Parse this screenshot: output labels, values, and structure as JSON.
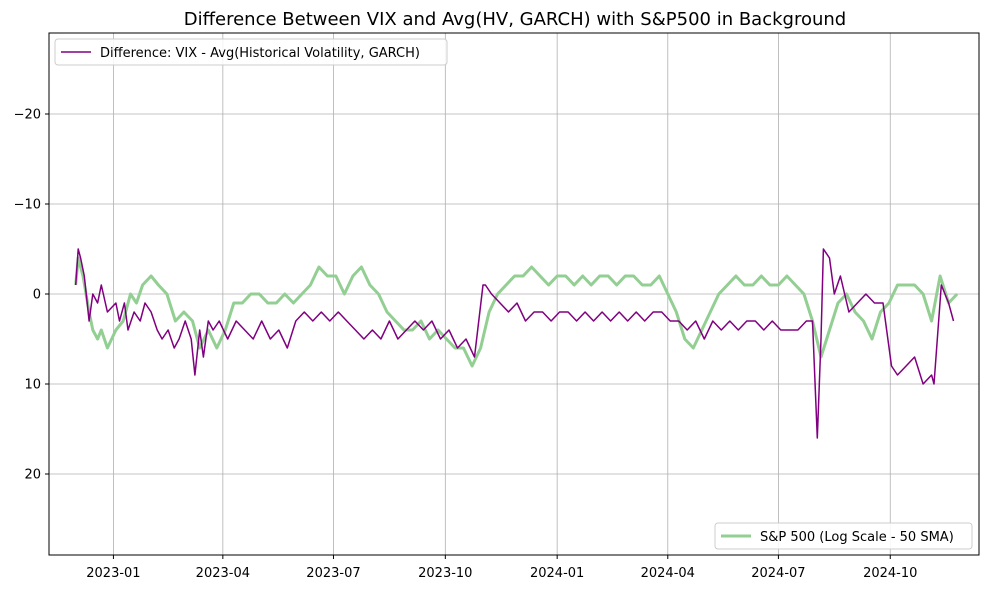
{
  "chart_data": {
    "type": "line",
    "title": "Difference Between VIX and Avg(HV, GARCH) with S&P500 in Background",
    "xlabel": "",
    "ylabel": "",
    "y_axis": {
      "inverted": true,
      "ylim": [
        29,
        -29
      ],
      "ticks": [
        -20,
        -10,
        0,
        10,
        20
      ],
      "tick_labels": [
        "−20",
        "−10",
        "0",
        "10",
        "20"
      ]
    },
    "x_axis": {
      "range": [
        "2022-11-09",
        "2024-12-13"
      ],
      "ticks": [
        "2023-01-01",
        "2023-04-01",
        "2023-07-01",
        "2023-10-01",
        "2024-01-01",
        "2024-04-01",
        "2024-07-01",
        "2024-10-01"
      ],
      "tick_labels": [
        "2023-01",
        "2023-04",
        "2023-07",
        "2023-10",
        "2024-01",
        "2024-04",
        "2024-07",
        "2024-10"
      ]
    },
    "grid": true,
    "series": [
      {
        "name": "Difference: VIX - Avg(Historical Volatility, GARCH)",
        "color": "#800080",
        "legend_position": "upper-left",
        "x": [
          "2022-12-01",
          "2022-12-03",
          "2022-12-05",
          "2022-12-08",
          "2022-12-12",
          "2022-12-15",
          "2022-12-19",
          "2022-12-22",
          "2022-12-27",
          "2023-01-03",
          "2023-01-06",
          "2023-01-10",
          "2023-01-13",
          "2023-01-18",
          "2023-01-23",
          "2023-01-27",
          "2023-02-01",
          "2023-02-06",
          "2023-02-10",
          "2023-02-15",
          "2023-02-20",
          "2023-02-24",
          "2023-03-01",
          "2023-03-06",
          "2023-03-09",
          "2023-03-13",
          "2023-03-16",
          "2023-03-20",
          "2023-03-24",
          "2023-03-29",
          "2023-04-05",
          "2023-04-12",
          "2023-04-19",
          "2023-04-26",
          "2023-05-03",
          "2023-05-10",
          "2023-05-17",
          "2023-05-24",
          "2023-05-31",
          "2023-06-07",
          "2023-06-14",
          "2023-06-21",
          "2023-06-28",
          "2023-07-05",
          "2023-07-12",
          "2023-07-19",
          "2023-07-26",
          "2023-08-02",
          "2023-08-09",
          "2023-08-16",
          "2023-08-23",
          "2023-08-30",
          "2023-09-06",
          "2023-09-13",
          "2023-09-20",
          "2023-09-27",
          "2023-10-04",
          "2023-10-11",
          "2023-10-18",
          "2023-10-25",
          "2023-11-01",
          "2023-11-03",
          "2023-11-08",
          "2023-11-15",
          "2023-11-22",
          "2023-11-29",
          "2023-12-06",
          "2023-12-13",
          "2023-12-20",
          "2023-12-27",
          "2024-01-03",
          "2024-01-10",
          "2024-01-17",
          "2024-01-24",
          "2024-01-31",
          "2024-02-07",
          "2024-02-14",
          "2024-02-21",
          "2024-02-28",
          "2024-03-06",
          "2024-03-13",
          "2024-03-20",
          "2024-03-27",
          "2024-04-03",
          "2024-04-10",
          "2024-04-17",
          "2024-04-24",
          "2024-05-01",
          "2024-05-08",
          "2024-05-15",
          "2024-05-22",
          "2024-05-29",
          "2024-06-05",
          "2024-06-12",
          "2024-06-19",
          "2024-06-26",
          "2024-07-03",
          "2024-07-10",
          "2024-07-17",
          "2024-07-24",
          "2024-07-29",
          "2024-08-02",
          "2024-08-05",
          "2024-08-07",
          "2024-08-12",
          "2024-08-16",
          "2024-08-21",
          "2024-08-28",
          "2024-09-04",
          "2024-09-11",
          "2024-09-18",
          "2024-09-25",
          "2024-10-02",
          "2024-10-07",
          "2024-10-14",
          "2024-10-21",
          "2024-10-28",
          "2024-11-04",
          "2024-11-06",
          "2024-11-12",
          "2024-11-18",
          "2024-11-22"
        ],
        "y": [
          -1,
          -5,
          -4,
          -2,
          3,
          0,
          1,
          -1,
          2,
          1,
          3,
          1,
          4,
          2,
          3,
          1,
          2,
          4,
          5,
          4,
          6,
          5,
          3,
          5,
          9,
          4,
          7,
          3,
          4,
          3,
          5,
          3,
          4,
          5,
          3,
          5,
          4,
          6,
          3,
          2,
          3,
          2,
          3,
          2,
          3,
          4,
          5,
          4,
          5,
          3,
          5,
          4,
          3,
          4,
          3,
          5,
          4,
          6,
          5,
          7,
          -1,
          -1,
          0,
          1,
          2,
          1,
          3,
          2,
          2,
          3,
          2,
          2,
          3,
          2,
          3,
          2,
          3,
          2,
          3,
          2,
          3,
          2,
          2,
          3,
          3,
          4,
          3,
          5,
          3,
          4,
          3,
          4,
          3,
          3,
          4,
          3,
          4,
          4,
          4,
          3,
          3,
          16,
          5,
          -5,
          -4,
          0,
          -2,
          2,
          1,
          0,
          1,
          1,
          8,
          9,
          8,
          7,
          10,
          9,
          10,
          -1,
          1,
          3
        ]
      },
      {
        "name": "S&P 500 (Log Scale - 50 SMA)",
        "color": "#93cf93",
        "legend_position": "lower-right",
        "x": [
          "2022-12-01",
          "2022-12-03",
          "2022-12-07",
          "2022-12-12",
          "2022-12-15",
          "2022-12-19",
          "2022-12-22",
          "2022-12-27",
          "2023-01-03",
          "2023-01-09",
          "2023-01-15",
          "2023-01-20",
          "2023-01-25",
          "2023-02-01",
          "2023-02-07",
          "2023-02-14",
          "2023-02-21",
          "2023-02-28",
          "2023-03-07",
          "2023-03-13",
          "2023-03-20",
          "2023-03-27",
          "2023-04-03",
          "2023-04-10",
          "2023-04-17",
          "2023-04-24",
          "2023-05-01",
          "2023-05-08",
          "2023-05-15",
          "2023-05-22",
          "2023-05-29",
          "2023-06-05",
          "2023-06-12",
          "2023-06-19",
          "2023-06-26",
          "2023-07-03",
          "2023-07-10",
          "2023-07-17",
          "2023-07-24",
          "2023-07-31",
          "2023-08-07",
          "2023-08-14",
          "2023-08-21",
          "2023-08-28",
          "2023-09-04",
          "2023-09-11",
          "2023-09-18",
          "2023-09-25",
          "2023-10-02",
          "2023-10-09",
          "2023-10-16",
          "2023-10-23",
          "2023-10-30",
          "2023-11-06",
          "2023-11-13",
          "2023-11-20",
          "2023-11-27",
          "2023-12-04",
          "2023-12-11",
          "2023-12-18",
          "2023-12-25",
          "2024-01-01",
          "2024-01-08",
          "2024-01-15",
          "2024-01-22",
          "2024-01-29",
          "2024-02-05",
          "2024-02-12",
          "2024-02-19",
          "2024-02-26",
          "2024-03-04",
          "2024-03-11",
          "2024-03-18",
          "2024-03-25",
          "2024-04-01",
          "2024-04-08",
          "2024-04-15",
          "2024-04-22",
          "2024-04-29",
          "2024-05-06",
          "2024-05-13",
          "2024-05-20",
          "2024-05-27",
          "2024-06-03",
          "2024-06-10",
          "2024-06-17",
          "2024-06-24",
          "2024-07-01",
          "2024-07-08",
          "2024-07-15",
          "2024-07-22",
          "2024-07-29",
          "2024-08-05",
          "2024-08-12",
          "2024-08-19",
          "2024-08-26",
          "2024-09-02",
          "2024-09-09",
          "2024-09-16",
          "2024-09-23",
          "2024-09-30",
          "2024-10-07",
          "2024-10-14",
          "2024-10-21",
          "2024-10-28",
          "2024-11-04",
          "2024-11-11",
          "2024-11-18",
          "2024-11-25"
        ],
        "y": [
          -1,
          -4,
          -2,
          2,
          4,
          5,
          4,
          6,
          4,
          3,
          0,
          1,
          -1,
          -2,
          -1,
          0,
          3,
          2,
          3,
          6,
          4,
          6,
          4,
          1,
          1,
          0,
          0,
          1,
          1,
          0,
          1,
          0,
          -1,
          -3,
          -2,
          -2,
          0,
          -2,
          -3,
          -1,
          0,
          2,
          3,
          4,
          4,
          3,
          5,
          4,
          5,
          6,
          6,
          8,
          6,
          2,
          0,
          -1,
          -2,
          -2,
          -3,
          -2,
          -1,
          -2,
          -2,
          -1,
          -2,
          -1,
          -2,
          -2,
          -1,
          -2,
          -2,
          -1,
          -1,
          -2,
          0,
          2,
          5,
          6,
          4,
          2,
          0,
          -1,
          -2,
          -1,
          -1,
          -2,
          -1,
          -1,
          -2,
          -1,
          0,
          3,
          7,
          4,
          1,
          0,
          2,
          3,
          5,
          2,
          1,
          -1,
          -1,
          -1,
          0,
          3,
          -2,
          1,
          0
        ]
      }
    ]
  }
}
